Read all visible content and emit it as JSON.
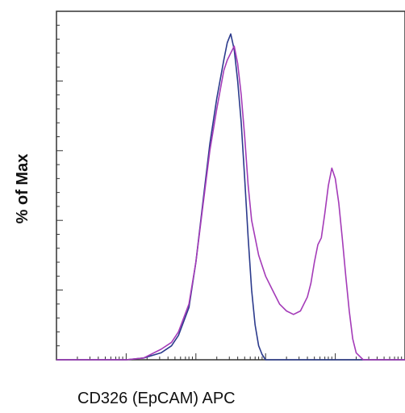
{
  "chart_data": {
    "type": "line",
    "title": "",
    "xlabel": "CD326 (EpCAM) APC",
    "ylabel": "% of Max",
    "xlim": [
      0,
      100
    ],
    "ylim": [
      0,
      100
    ],
    "grid": false,
    "legend": "none",
    "series": [
      {
        "color": "#2b3a8c",
        "x": [
          0,
          5,
          10,
          15,
          20,
          25,
          30,
          33,
          35,
          38,
          40,
          42,
          44,
          46,
          48,
          49,
          50,
          51,
          52,
          53,
          54,
          55,
          56,
          57,
          58,
          59,
          60,
          62,
          65,
          70,
          80,
          90,
          100
        ],
        "y": [
          0,
          0,
          0,
          0,
          0,
          0.5,
          2,
          4,
          7,
          15,
          28,
          45,
          62,
          75,
          86,
          91,
          93.5,
          89,
          80,
          68,
          52,
          35,
          20,
          10,
          4,
          1.5,
          0,
          0,
          0,
          0,
          0,
          0,
          0
        ]
      },
      {
        "color": "#a43bb8",
        "x": [
          0,
          5,
          10,
          15,
          20,
          25,
          30,
          33,
          35,
          38,
          40,
          42,
          44,
          46,
          48,
          49,
          50,
          51,
          52,
          53,
          54,
          55,
          56,
          58,
          60,
          62,
          64,
          66,
          68,
          70,
          72,
          73,
          74,
          75,
          76,
          77,
          78,
          79,
          80,
          81,
          82,
          83,
          84,
          85,
          86,
          88,
          90,
          92,
          95,
          100
        ],
        "y": [
          0,
          0,
          0,
          0,
          0,
          0.5,
          3,
          5,
          8,
          16,
          28,
          44,
          60,
          72,
          83,
          86,
          88,
          90,
          85,
          76,
          64,
          50,
          40,
          30,
          24,
          20,
          16,
          14,
          13,
          14,
          18,
          22,
          28,
          33,
          35,
          42,
          50,
          55,
          52,
          45,
          35,
          24,
          14,
          6,
          2,
          0,
          0,
          0,
          0,
          0
        ]
      }
    ]
  }
}
